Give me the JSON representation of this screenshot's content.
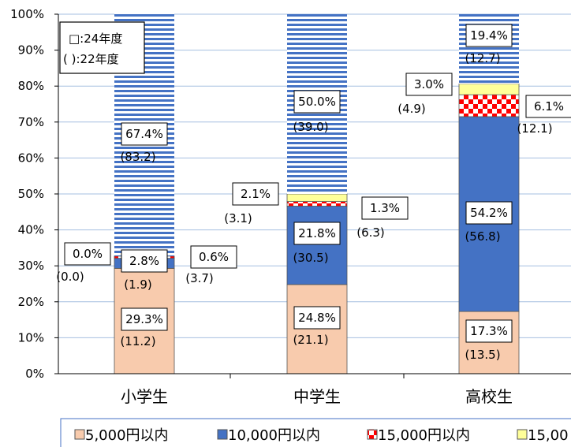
{
  "chart_data": {
    "type": "bar",
    "stacked": true,
    "categories": [
      "小学生",
      "中学生",
      "高校生"
    ],
    "ylim": [
      0,
      100
    ],
    "yticks": [
      "0%",
      "10%",
      "20%",
      "30%",
      "40%",
      "50%",
      "60%",
      "70%",
      "80%",
      "90%",
      "100%"
    ],
    "grid": true,
    "note": [
      "□:24年度",
      "( ):22年度"
    ],
    "series": [
      {
        "name": "5,000円以内",
        "color": "#f8cbad",
        "pattern": "solid",
        "values": [
          29.3,
          24.8,
          17.3
        ],
        "labels": [
          "29.3%",
          "24.8%",
          "17.3%"
        ],
        "prev_labels": [
          "(11.2)",
          "(21.1)",
          "(13.5)"
        ]
      },
      {
        "name": "10,000円以内",
        "color": "#4472c4",
        "pattern": "solid",
        "values": [
          2.8,
          21.8,
          54.2
        ],
        "labels": [
          "2.8%",
          "21.8%",
          "54.2%"
        ],
        "prev_labels": [
          "(1.9)",
          "(30.5)",
          "(56.8)"
        ]
      },
      {
        "name": "15,000円以内",
        "color": "#ff0000",
        "pattern": "checker",
        "values": [
          0.6,
          1.3,
          6.1
        ],
        "labels": [
          "0.6%",
          "1.3%",
          "6.1%"
        ],
        "prev_labels": [
          "(3.7)",
          "(6.3)",
          "(12.1)"
        ]
      },
      {
        "name": "15,00",
        "color": "#ffff99",
        "pattern": "solid",
        "values": [
          0.0,
          2.1,
          3.0
        ],
        "labels": [
          "0.0%",
          "2.1%",
          "3.0%"
        ],
        "prev_labels": [
          "(0.0)",
          "(3.1)",
          "(4.9)"
        ]
      },
      {
        "name": "",
        "color": "#4472c4",
        "pattern": "hstripe",
        "values": [
          67.4,
          50.0,
          19.4
        ],
        "labels": [
          "67.4%",
          "50.0%",
          "19.4%"
        ],
        "prev_labels": [
          "(83.2)",
          "(39.0)",
          "(12.7)"
        ]
      }
    ]
  }
}
